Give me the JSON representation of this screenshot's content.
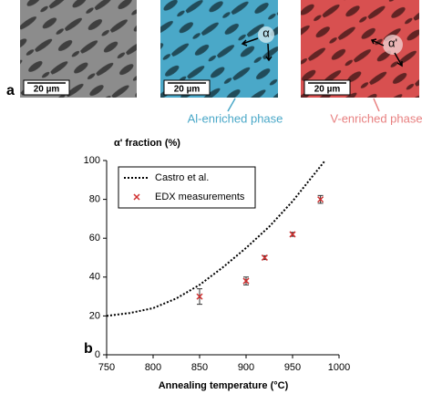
{
  "panel_labels": [
    "a",
    "b"
  ],
  "micrographs": [
    {
      "scale": "20 µm"
    },
    {
      "scale": "20 µm",
      "marker": "α"
    },
    {
      "scale": "20 µm",
      "marker": "α'"
    }
  ],
  "phases": [
    "Al-enriched phase",
    "V-enriched phase"
  ],
  "chart_data": {
    "type": "scatter",
    "y_label": "α' fraction (%)",
    "x_label": "Annealing temperature (°C)",
    "xlim": [
      750,
      1000
    ],
    "ylim": [
      0,
      100
    ],
    "xticks": [
      750,
      800,
      850,
      900,
      950,
      1000
    ],
    "yticks": [
      0,
      20,
      40,
      60,
      80,
      100
    ],
    "grid": false,
    "legend": "upper left",
    "series": [
      {
        "name": "Castro et al.",
        "color": "#000000",
        "mode": "line",
        "x": [
          750,
          775,
          800,
          825,
          850,
          875,
          900,
          925,
          950,
          975,
          985
        ],
        "values": [
          20,
          21.5,
          24,
          29,
          36,
          45,
          55,
          66,
          79,
          94,
          100
        ]
      },
      {
        "name": "EDX measurements",
        "color": "#d03030",
        "mode": "markers",
        "x": [
          850,
          900,
          920,
          950,
          980
        ],
        "values": [
          30,
          38,
          50,
          62,
          80
        ],
        "errors": [
          4,
          2,
          1,
          1,
          2
        ]
      }
    ]
  }
}
